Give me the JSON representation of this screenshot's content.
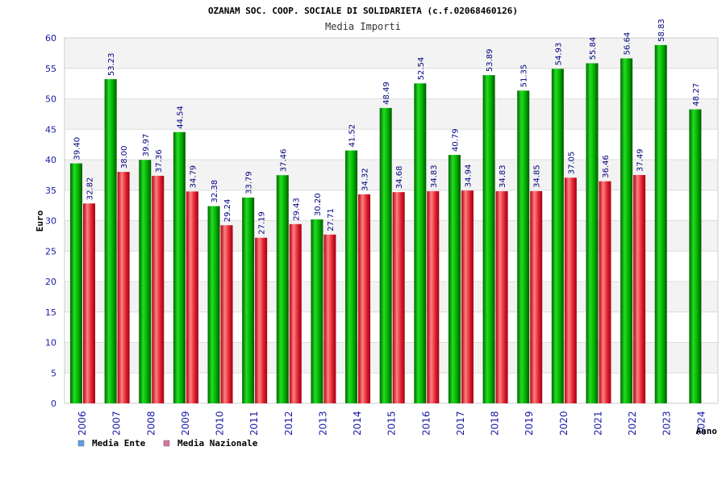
{
  "chart_data": {
    "type": "bar",
    "title": "OZANAM SOC. COOP. SOCIALE DI SOLIDARIETA (c.f.02068460126)",
    "subtitle": "Media Importi",
    "xlabel": "Anno",
    "ylabel": "Euro",
    "ylim": [
      0,
      60
    ],
    "ytick_step": 5,
    "grid": true,
    "legend_position": "bottom-left",
    "categories": [
      "2006",
      "2007",
      "2008",
      "2009",
      "2010",
      "2011",
      "2012",
      "2013",
      "2014",
      "2015",
      "2016",
      "2017",
      "2018",
      "2019",
      "2020",
      "2021",
      "2022",
      "2023",
      "2024"
    ],
    "series": [
      {
        "name": "Media Ente",
        "color": "#00a000",
        "legend_color": "#5aa0e6",
        "values": [
          39.4,
          53.23,
          39.97,
          44.54,
          32.38,
          33.79,
          37.46,
          30.2,
          41.52,
          48.49,
          52.54,
          40.79,
          53.89,
          51.35,
          54.93,
          55.84,
          56.64,
          58.83,
          48.27
        ],
        "labels": [
          "39.40",
          "53.23",
          "39.97",
          "44.54",
          "32.38",
          "33.79",
          "37.46",
          "30.20",
          "41.52",
          "48.49",
          "52.54",
          "40.79",
          "53.89",
          "51.35",
          "54.93",
          "55.84",
          "56.64",
          "58.83",
          "48.27"
        ]
      },
      {
        "name": "Media Nazionale",
        "color": "#e02030",
        "legend_color": "#e070a0",
        "values": [
          32.82,
          38.0,
          37.36,
          34.79,
          29.24,
          27.19,
          29.43,
          27.71,
          34.32,
          34.68,
          34.83,
          34.94,
          34.83,
          34.85,
          37.05,
          36.46,
          37.49,
          null,
          null
        ],
        "labels": [
          "32.82",
          "38.00",
          "37.36",
          "34.79",
          "29.24",
          "27.19",
          "29.43",
          "27.71",
          "34.32",
          "34.68",
          "34.83",
          "34.94",
          "34.83",
          "34.85",
          "37.05",
          "36.46",
          "37.49",
          "",
          ""
        ]
      }
    ]
  }
}
